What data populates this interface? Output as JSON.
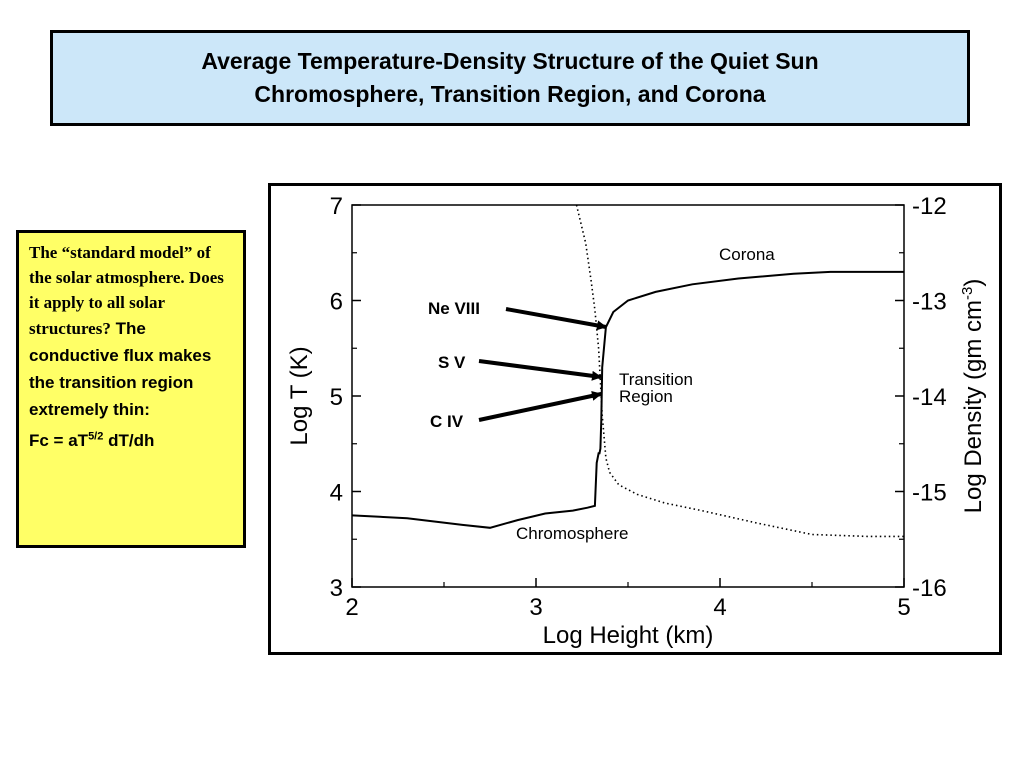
{
  "title": {
    "line1": "Average Temperature-Density Structure of the Quiet Sun",
    "line2": "Chromosphere, Transition Region, and Corona"
  },
  "note": {
    "serif_text": "The “standard model” of the solar atmosphere. Does it apply to all solar structures?",
    "sans_text": " The conductive flux makes the transition region extremely thin:",
    "formula_prefix": "Fc = aT",
    "formula_sup": "5/2",
    "formula_suffix": " dT/dh"
  },
  "annotations": [
    {
      "label": "Ne VIII",
      "log_t": 5.8
    },
    {
      "label": "S V",
      "log_t": 5.2
    },
    {
      "label": "C IV",
      "log_t": 5.0
    }
  ],
  "chart_data": {
    "type": "line",
    "xlabel": "Log Height (km)",
    "ylabel": "Log T (K)",
    "y2label": "Log Density (gm cm",
    "y2label_sup": "-3",
    "y2label_suffix": ")",
    "xlim": [
      2,
      5
    ],
    "ylim": [
      3,
      7
    ],
    "y2lim": [
      -16,
      -12
    ],
    "x_ticks": [
      "2",
      "3",
      "4",
      "5"
    ],
    "y_ticks": [
      "3",
      "4",
      "5",
      "6",
      "7"
    ],
    "y2_ticks": [
      "-16",
      "-15",
      "-14",
      "-13",
      "-12"
    ],
    "region_labels": [
      "Corona",
      "Transition",
      "Region",
      "Chromosphere"
    ],
    "series": [
      {
        "axis": "left",
        "style": "solid",
        "x": [
          2.0,
          2.3,
          2.6,
          2.75,
          2.9,
          3.05,
          3.2,
          3.28,
          3.32,
          3.33,
          3.34,
          3.345,
          3.35,
          3.355,
          3.36,
          3.38,
          3.42,
          3.5,
          3.65,
          3.85,
          4.1,
          4.4,
          4.6,
          4.8,
          5.0
        ],
        "y": [
          3.75,
          3.72,
          3.65,
          3.62,
          3.7,
          3.77,
          3.8,
          3.83,
          3.85,
          4.3,
          4.4,
          4.4,
          4.45,
          4.75,
          5.3,
          5.72,
          5.88,
          6.0,
          6.09,
          6.17,
          6.23,
          6.28,
          6.3,
          6.3,
          6.3
        ]
      },
      {
        "axis": "right",
        "style": "dotted",
        "x": [
          3.22,
          3.27,
          3.3,
          3.32,
          3.34,
          3.36,
          3.38,
          3.4,
          3.45,
          3.55,
          3.7,
          3.9,
          4.2,
          4.5,
          4.8,
          5.0
        ],
        "y": [
          -12.0,
          -12.4,
          -12.8,
          -13.1,
          -13.5,
          -14.2,
          -14.65,
          -14.8,
          -14.93,
          -15.03,
          -15.12,
          -15.2,
          -15.33,
          -15.45,
          -15.47,
          -15.47
        ]
      }
    ]
  }
}
